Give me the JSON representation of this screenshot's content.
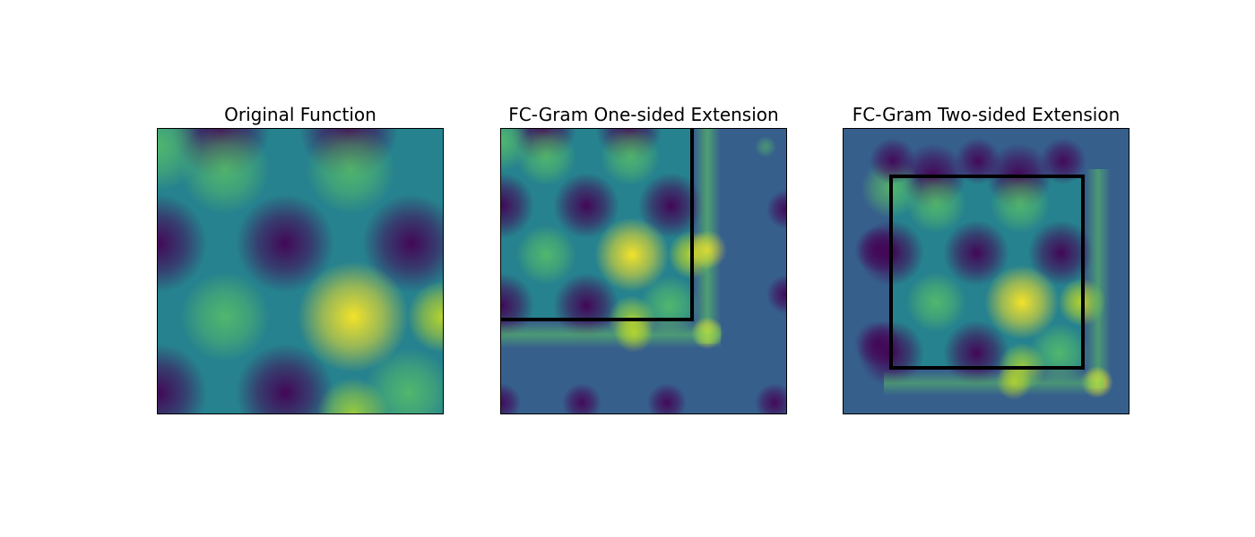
{
  "figure": {
    "colormap": "viridis",
    "background": "#ffffff",
    "extension_fill_color": "#365f8c",
    "box_color": "#000000"
  },
  "chart_data": [
    {
      "type": "heatmap",
      "title": "Original Function",
      "region": "original",
      "axes_visible": false,
      "colormap": "viridis"
    },
    {
      "type": "heatmap",
      "title": "FC-Gram One-sided Extension",
      "region": "one-sided",
      "axes_visible": false,
      "colormap": "viridis",
      "original_domain_box": true
    },
    {
      "type": "heatmap",
      "title": "FC-Gram Two-sided Extension",
      "region": "two-sided",
      "axes_visible": false,
      "colormap": "viridis",
      "original_domain_box": true
    }
  ]
}
